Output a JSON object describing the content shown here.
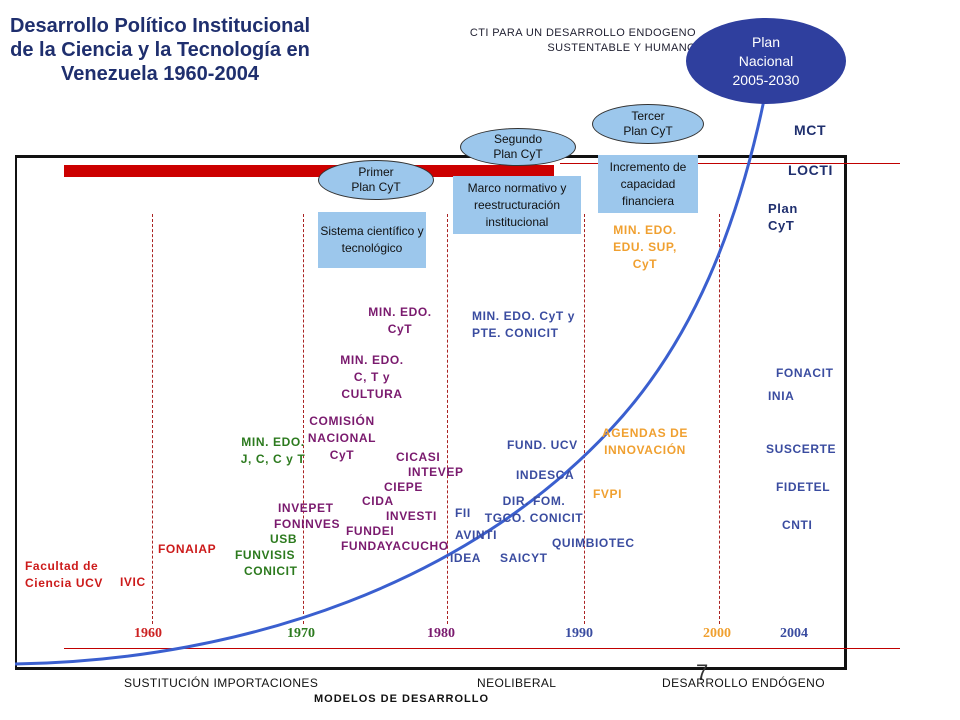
{
  "title": "Desarrollo Político Institucional de la Ciencia y la Tecnología en Venezuela 1960-2004",
  "cti_box": [
    "CTI PARA UN DESARROLLO ENDOGENO",
    "SUSTENTABLE Y HUMANO"
  ],
  "plan_nacional": [
    "Plan",
    "Nacional",
    "2005-2030"
  ],
  "right_labels": {
    "mct": "MCT",
    "locti": "LOCTI",
    "plan_cyt": [
      "Plan",
      "CyT"
    ]
  },
  "ellipses": {
    "primer": [
      "Primer",
      "Plan CyT"
    ],
    "segundo": [
      "Segundo",
      "Plan CyT"
    ],
    "tercer": [
      "Tercer",
      "Plan CyT"
    ]
  },
  "boxes": {
    "sistema": "Sistema científico y tecnológico",
    "marco": "Marco normativo y reestructuración institucional",
    "incremento": "Incremento de capacidad financiera"
  },
  "labels": {
    "min_edu_sup": [
      "MIN. EDO.",
      "EDU. SUP,",
      "CyT"
    ],
    "min_cyt": [
      "MIN. EDO.",
      "CyT"
    ],
    "min_cyt_pte": [
      "MIN. EDO. CyT y",
      "PTE. CONICIT"
    ],
    "min_ctc": [
      "MIN. EDO.",
      "C, T y",
      "CULTURA"
    ],
    "comision": [
      "COMISIÓN",
      "NACIONAL",
      "CyT"
    ],
    "min_jcct": [
      "MIN. EDO.",
      "J, C, C y T"
    ],
    "cicasi": "CICASI",
    "intevep": "INTEVEP",
    "ciepe": "CIEPE",
    "cida": "CIDA",
    "investi": "INVESTI",
    "fundei": "FUNDEI",
    "fundayacucho": "FUNDAYACUCHO",
    "invepet": "INVEPET",
    "foninves": "FONINVES",
    "usb": "USB",
    "funvisis": "FUNVISIS",
    "conicit": "CONICIT",
    "fonaiap": "FONAIAP",
    "facultad": [
      "Facultad de",
      "Ciencia UCV"
    ],
    "ivic": "IVIC",
    "fund_ucv": "FUND. UCV",
    "indesca": "INDESCA",
    "dir_fom": [
      "DIR. FOM.",
      "TGCO. CONICIT"
    ],
    "fii": "FII",
    "avinti": "AVINTI",
    "idea": "IDEA",
    "saicyt": "SAICYT",
    "quimbiotec": "QUIMBIOTEC",
    "agendas": [
      "AGENDAS DE",
      "INNOVACIÓN"
    ],
    "fvpi": "FVPI",
    "fonacit": "FONACIT",
    "inia": "INIA",
    "suscerte": "SUSCERTE",
    "fidetel": "FIDETEL",
    "cnti": "CNTI"
  },
  "years": [
    "1960",
    "1970",
    "1980",
    "1990",
    "2000",
    "2004"
  ],
  "bottom": {
    "sustitucion": "SUSTITUCIÓN IMPORTACIONES",
    "neoliberal": "NEOLIBERAL",
    "endogeno": "DESARROLLO ENDÓGENO",
    "modelos": "MODELOS DE DESARROLLO"
  },
  "slide_number": "7"
}
